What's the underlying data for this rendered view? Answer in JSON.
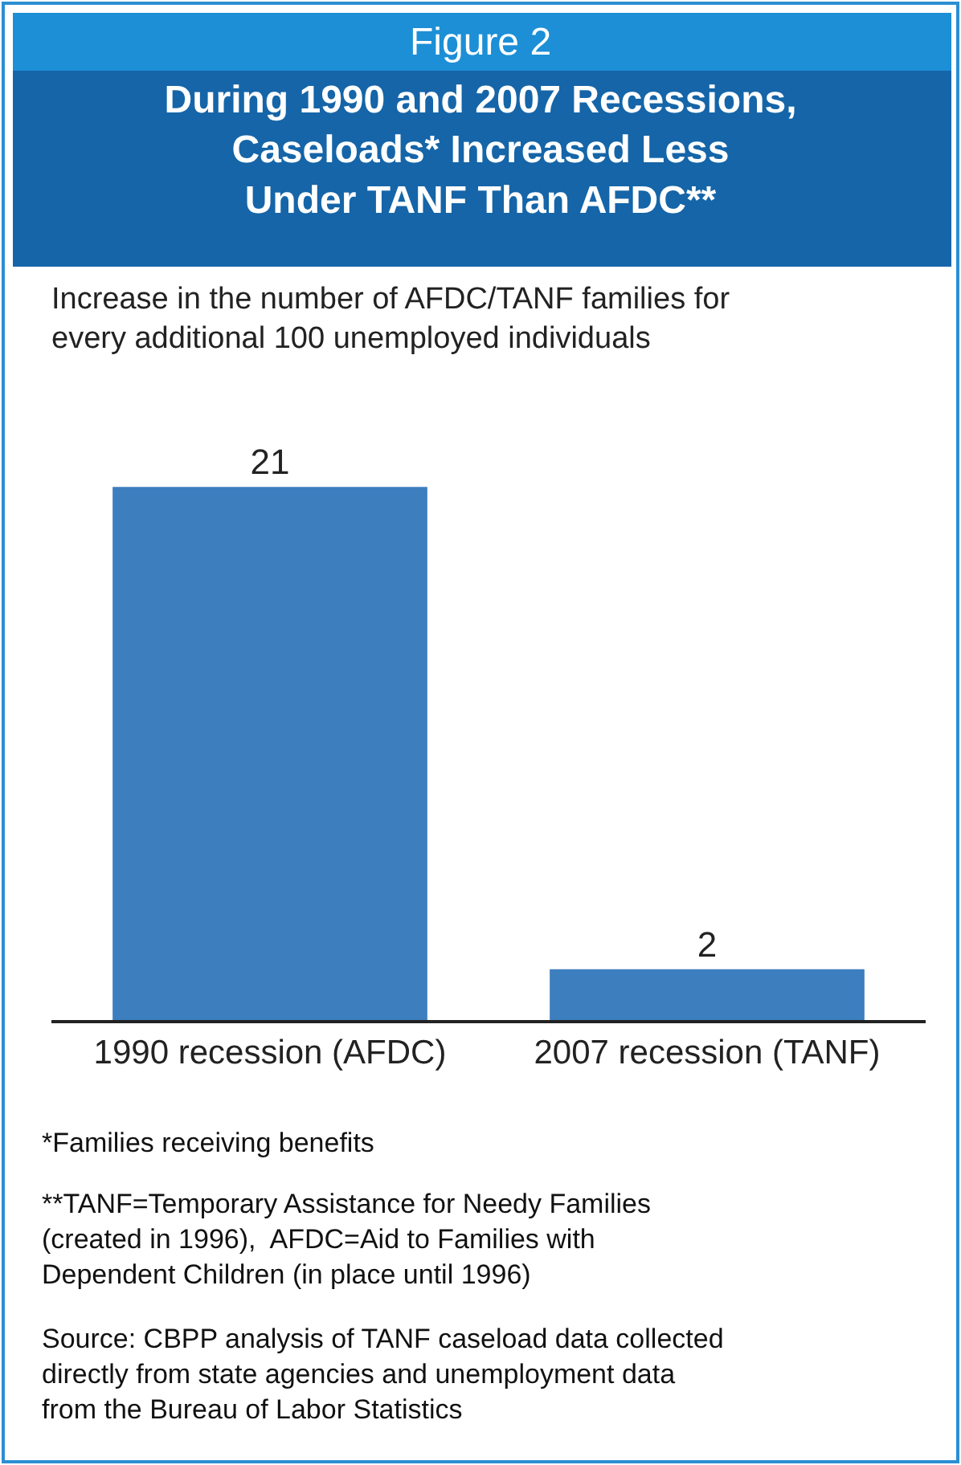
{
  "chart_data": {
    "type": "bar",
    "subtitle": "Figure 2",
    "title": "During 1990 and 2007 Recessions,\nCaseloads* Increased Less\nUnder TANF Than AFDC**",
    "ylabel": "Increase in the number of AFDC/TANF families for\nevery additional 100 unemployed individuals",
    "categories": [
      "1990 recession (AFDC)",
      "2007 recession (TANF)"
    ],
    "values": [
      21,
      2
    ],
    "color": "#3d7ebf",
    "data_labels": true,
    "legend": false,
    "annotations": [
      "*Families receiving benefits",
      "**TANF=Temporary Assistance for Needy Families\n(created in 1996),  AFDC=Aid to Families with\nDependent Children (in place until 1996)",
      "Source: CBPP analysis of TANF caseload data collected\ndirectly from state agencies and unemployment data\nfrom the Bureau of Labor Statistics"
    ]
  }
}
